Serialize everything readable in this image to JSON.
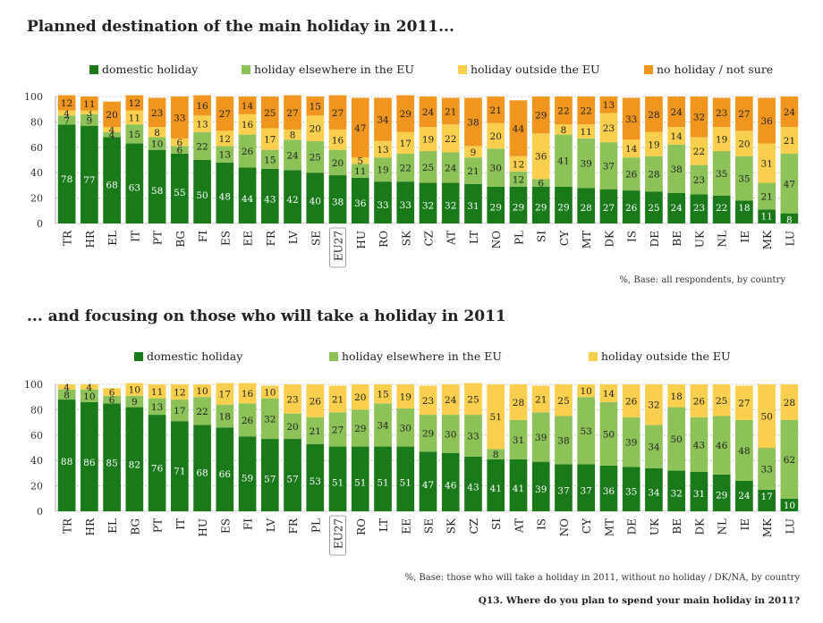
{
  "colors": {
    "domestic": "#1a7a1a",
    "eu": "#8cc257",
    "outside": "#f9cf4d",
    "none": "#f0961e",
    "grid": "#bcbcbc"
  },
  "footer": {
    "question": "Q13. Where do you plan to spend your main holiday in 2011?"
  },
  "chart_data": [
    {
      "type": "bar",
      "stacked": true,
      "title": "Planned destination of the main holiday in 2011...",
      "note": "%, Base: all respondents, by country",
      "ylim": [
        0,
        100
      ],
      "yticks": [
        0,
        20,
        40,
        60,
        80,
        100
      ],
      "legend": [
        "domestic holiday",
        "holiday elsewhere in the EU",
        "holiday outside the EU",
        "no holiday / not sure"
      ],
      "categories": [
        "TR",
        "HR",
        "EL",
        "IT",
        "PT",
        "BG",
        "FI",
        "ES",
        "EE",
        "FR",
        "LV",
        "SE",
        "EU27",
        "HU",
        "RO",
        "SK",
        "CZ",
        "AT",
        "LT",
        "NO",
        "PL",
        "SI",
        "CY",
        "MT",
        "DK",
        "IS",
        "DE",
        "BE",
        "UK",
        "NL",
        "IE",
        "MK",
        "LU"
      ],
      "highlight": "EU27",
      "series": [
        {
          "name": "domestic holiday",
          "values": [
            78,
            77,
            68,
            63,
            58,
            55,
            50,
            48,
            44,
            43,
            42,
            40,
            38,
            36,
            33,
            33,
            32,
            32,
            31,
            29,
            29,
            29,
            29,
            28,
            27,
            26,
            25,
            24,
            23,
            22,
            18,
            11,
            8
          ]
        },
        {
          "name": "holiday elsewhere in the EU",
          "values": [
            7,
            9,
            4,
            15,
            10,
            6,
            22,
            13,
            26,
            15,
            24,
            25,
            20,
            11,
            19,
            22,
            25,
            24,
            21,
            30,
            12,
            6,
            41,
            39,
            37,
            26,
            28,
            38,
            23,
            35,
            35,
            21,
            47
          ]
        },
        {
          "name": "holiday outside the EU",
          "values": [
            4,
            3,
            4,
            11,
            8,
            6,
            13,
            12,
            16,
            17,
            8,
            20,
            16,
            5,
            13,
            17,
            19,
            22,
            9,
            20,
            12,
            36,
            8,
            11,
            23,
            14,
            19,
            14,
            22,
            19,
            20,
            31,
            21
          ]
        },
        {
          "name": "no holiday / not sure",
          "values": [
            12,
            11,
            20,
            12,
            23,
            33,
            16,
            27,
            14,
            25,
            27,
            15,
            27,
            47,
            34,
            29,
            24,
            21,
            38,
            21,
            44,
            29,
            22,
            22,
            13,
            33,
            28,
            24,
            32,
            23,
            27,
            36,
            24
          ]
        }
      ]
    },
    {
      "type": "bar",
      "stacked": true,
      "title": "... and focusing on those who will take a holiday in 2011",
      "note": "%, Base: those who will take a holiday in 2011, without no holiday / DK/NA, by country",
      "ylim": [
        0,
        100
      ],
      "yticks": [
        0,
        20,
        40,
        60,
        80,
        100
      ],
      "legend": [
        "domestic holiday",
        "holiday elsewhere in the EU",
        "holiday outside the EU"
      ],
      "categories": [
        "TR",
        "HR",
        "EL",
        "BG",
        "PT",
        "IT",
        "HU",
        "ES",
        "FI",
        "LV",
        "FR",
        "PL",
        "EU27",
        "RO",
        "LT",
        "EE",
        "SE",
        "SK",
        "CZ",
        "SI",
        "AT",
        "IS",
        "NO",
        "CY",
        "MT",
        "DE",
        "UK",
        "BE",
        "DK",
        "NL",
        "IE",
        "MK",
        "LU"
      ],
      "highlight": "EU27",
      "series": [
        {
          "name": "domestic holiday",
          "values": [
            88,
            86,
            85,
            82,
            76,
            71,
            68,
            66,
            59,
            57,
            57,
            53,
            51,
            51,
            51,
            51,
            47,
            46,
            43,
            41,
            41,
            39,
            37,
            37,
            36,
            35,
            34,
            32,
            31,
            29,
            24,
            17,
            10
          ]
        },
        {
          "name": "holiday elsewhere in the EU",
          "values": [
            8,
            10,
            6,
            9,
            13,
            17,
            22,
            18,
            26,
            32,
            20,
            21,
            27,
            29,
            34,
            30,
            29,
            30,
            33,
            8,
            31,
            39,
            38,
            53,
            50,
            39,
            34,
            50,
            43,
            46,
            48,
            33,
            62
          ]
        },
        {
          "name": "holiday outside the EU",
          "values": [
            4,
            4,
            6,
            10,
            11,
            12,
            10,
            17,
            16,
            10,
            23,
            26,
            21,
            20,
            15,
            19,
            23,
            24,
            25,
            51,
            28,
            21,
            25,
            10,
            14,
            26,
            32,
            18,
            26,
            25,
            27,
            50,
            28
          ]
        }
      ]
    }
  ]
}
